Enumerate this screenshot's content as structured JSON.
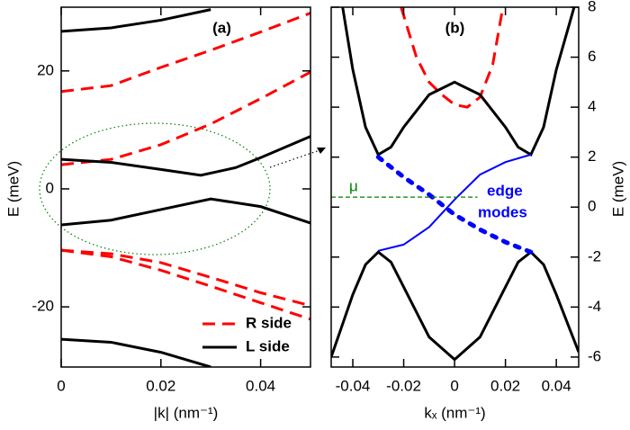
{
  "chart_data": [
    {
      "type": "line",
      "title": "(a)",
      "x_label": "|k| (nm⁻¹)",
      "y_label": "E (meV)",
      "y_side": "left",
      "xlim": [
        0,
        0.05
      ],
      "ylim": [
        -30.2,
        30.8
      ],
      "xticks": [
        0,
        0.02,
        0.04
      ],
      "yticks": [
        -20,
        0,
        20
      ],
      "legend": "lower right",
      "series": [
        {
          "name": "R side",
          "color": "#ff0000",
          "dash": "dashed",
          "x": [
            0,
            0.01,
            0.02,
            0.03,
            0.04,
            0.05
          ],
          "values": [
            16.5,
            17.5,
            20.6,
            23.5,
            26.6,
            29.8
          ]
        },
        {
          "color": "#ff0000",
          "dash": "dashed",
          "x": [
            0,
            0.01,
            0.02,
            0.03,
            0.04,
            0.05
          ],
          "values": [
            4.1,
            5,
            7.5,
            11,
            15.3,
            19.8
          ]
        },
        {
          "color": "#ff0000",
          "dash": "dashed",
          "x": [
            0,
            0.01,
            0.02,
            0.03,
            0.04,
            0.05
          ],
          "values": [
            -10.4,
            -11,
            -12.5,
            -15,
            -17.6,
            -19.8
          ]
        },
        {
          "color": "#ff0000",
          "dash": "dashed",
          "x": [
            0,
            0.01,
            0.02,
            0.03,
            0.04,
            0.05
          ],
          "values": [
            -10.4,
            -11.5,
            -13.8,
            -16.5,
            -19.3,
            -22.1
          ]
        },
        {
          "name": "L side",
          "color": "#000000",
          "dash": "solid",
          "x": [
            0,
            0.01,
            0.02,
            0.03
          ],
          "values": [
            26.7,
            27.3,
            28.6,
            30.4
          ]
        },
        {
          "color": "#000000",
          "dash": "solid",
          "x": [
            0,
            0.01,
            0.02,
            0.028,
            0.035,
            0.04,
            0.05
          ],
          "values": [
            5,
            4.5,
            3.3,
            2.3,
            3.6,
            5.3,
            8.9
          ]
        },
        {
          "color": "#000000",
          "dash": "solid",
          "x": [
            0,
            0.01,
            0.02,
            0.03,
            0.04,
            0.05
          ],
          "values": [
            -6.1,
            -5.3,
            -3.5,
            -1.7,
            -3,
            -5.8
          ]
        },
        {
          "color": "#000000",
          "dash": "solid",
          "x": [
            0,
            0.01,
            0.02,
            0.03
          ],
          "values": [
            -25.5,
            -26,
            -27.7,
            -30.2
          ]
        }
      ]
    },
    {
      "type": "line",
      "title": "(b)",
      "x_label": "kₓ (nm⁻¹)",
      "y_label": "E (meV)",
      "y_side": "right",
      "xlim": [
        -0.0485,
        0.0488
      ],
      "ylim": [
        -6.4,
        8
      ],
      "xticks": [
        -0.04,
        -0.02,
        0,
        0.02,
        0.04
      ],
      "yticks": [
        -6,
        -4,
        -2,
        0,
        2,
        4,
        6,
        8
      ],
      "annotations": [
        "μ",
        "edge",
        "modes"
      ],
      "series": [
        {
          "color": "#ff0000",
          "dash": "dashed",
          "x": [
            -0.021,
            -0.015,
            -0.01,
            -0.005,
            0,
            0.005,
            0.01,
            0.015,
            0.019
          ],
          "values": [
            8,
            6,
            5,
            4.5,
            4.1,
            4,
            4.4,
            5.7,
            8
          ]
        },
        {
          "color": "#000000",
          "dash": "solid",
          "x": [
            -0.044,
            -0.04,
            -0.035,
            -0.03,
            -0.025,
            -0.02,
            -0.01,
            0,
            0.01,
            0.02,
            0.025,
            0.03,
            0.035,
            0.04,
            0.047
          ],
          "values": [
            8,
            5.5,
            3.2,
            2.1,
            2.4,
            3.2,
            4.5,
            5,
            4.5,
            3.2,
            2.4,
            2.1,
            3.2,
            5.5,
            8
          ]
        },
        {
          "color": "#000000",
          "dash": "solid",
          "x": [
            -0.0485,
            -0.04,
            -0.035,
            -0.03,
            -0.025,
            -0.02,
            -0.01,
            0,
            0.01,
            0.02,
            0.025,
            0.03,
            0.035,
            0.04,
            0.0488
          ],
          "values": [
            -6,
            -3.5,
            -2.3,
            -1.8,
            -2.2,
            -3.2,
            -5.2,
            -6.1,
            -5.2,
            -3.2,
            -2.2,
            -1.8,
            -2.3,
            -3.5,
            -5.8
          ]
        },
        {
          "color": "#0000ff",
          "dash": "thin",
          "x": [
            -0.03,
            -0.02,
            -0.01,
            0,
            0.01,
            0.02,
            0.03
          ],
          "values": [
            -1.75,
            -1.5,
            -0.8,
            0.3,
            1.3,
            1.8,
            2.1
          ]
        },
        {
          "color": "#0000ff",
          "dash": "dotted",
          "x": [
            -0.03,
            -0.02,
            -0.01,
            0,
            0.01,
            0.02,
            0.03
          ],
          "values": [
            2,
            1.2,
            0.5,
            -0.3,
            -0.9,
            -1.4,
            -1.8
          ]
        },
        {
          "color": "#008000",
          "dash": "hair",
          "x": [
            -0.0485,
            0.009
          ],
          "values": [
            0.4,
            0.4
          ]
        }
      ]
    }
  ]
}
